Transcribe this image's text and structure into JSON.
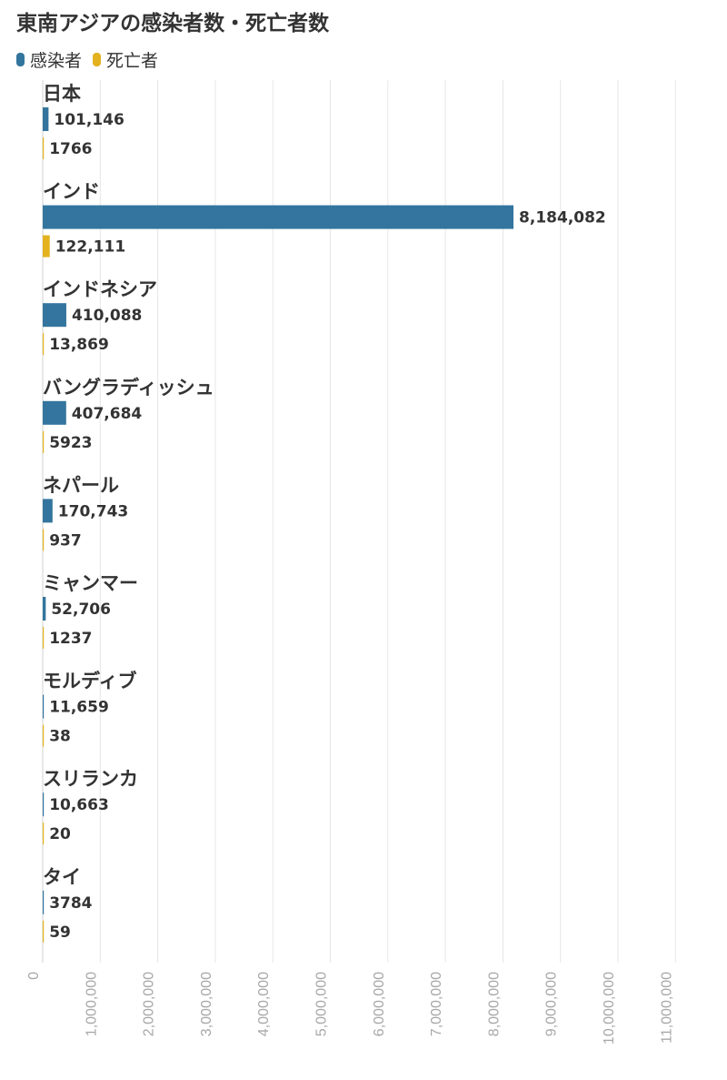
{
  "chart_data": {
    "type": "bar",
    "orientation": "horizontal",
    "title": "東南アジアの感染者数・死亡者数",
    "categories": [
      "日本",
      "インド",
      "インドネシア",
      "バングラディッシュ",
      "ネパール",
      "ミャンマー",
      "モルディブ",
      "スリランカ",
      "タイ"
    ],
    "series": [
      {
        "name": "感染者",
        "color": "#33759e",
        "values": [
          101146,
          8184082,
          410088,
          407684,
          170743,
          52706,
          11659,
          10663,
          3784
        ],
        "labels": [
          "101,146",
          "8,184,082",
          "410,088",
          "407,684",
          "170,743",
          "52,706",
          "11,659",
          "10,663",
          "3784"
        ]
      },
      {
        "name": "死亡者",
        "color": "#e3b21e",
        "values": [
          1766,
          122111,
          13869,
          5923,
          937,
          1237,
          38,
          20,
          59
        ],
        "labels": [
          "1766",
          "122,111",
          "13,869",
          "5923",
          "937",
          "1237",
          "38",
          "20",
          "59"
        ]
      }
    ],
    "xlim": [
      0,
      12000000
    ],
    "x_ticks": [
      0,
      1000000,
      2000000,
      3000000,
      4000000,
      5000000,
      6000000,
      7000000,
      8000000,
      9000000,
      10000000,
      11000000
    ],
    "x_tick_labels": [
      "0",
      "1,000,000",
      "2,000,000",
      "3,000,000",
      "4,000,000",
      "5,000,000",
      "6,000,000",
      "7,000,000",
      "8,000,000",
      "9,000,000",
      "10,000,000",
      "11,000,000"
    ],
    "grid": true,
    "legend_position": "top-left"
  }
}
